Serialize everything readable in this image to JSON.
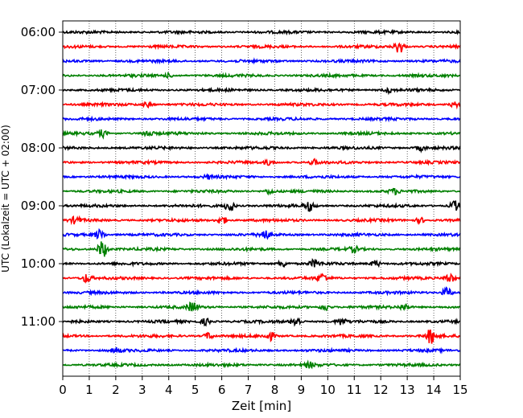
{
  "chart_data": {
    "type": "line",
    "xlabel": "Zeit  [min]",
    "ylabel": "UTC (Lokalzeit = UTC + 02:00)",
    "xlim": [
      0,
      15
    ],
    "x_ticks": [
      "0",
      "1",
      "2",
      "3",
      "4",
      "5",
      "6",
      "7",
      "8",
      "9",
      "10",
      "11",
      "12",
      "13",
      "14",
      "15"
    ],
    "y_ticks": [
      "06:00",
      "07:00",
      "08:00",
      "09:00",
      "10:00",
      "11:00"
    ],
    "grid": "vertical dotted",
    "trace_interval_minutes": 15,
    "first_trace": "06:00",
    "series_colors": [
      "#000000",
      "#ff0000",
      "#0000ff",
      "#008000"
    ],
    "traces": [
      {
        "start": "06:00",
        "color": "#000000",
        "events": []
      },
      {
        "start": "06:15",
        "color": "#ff0000",
        "events": [
          {
            "t": 12.7,
            "amp": 8
          }
        ]
      },
      {
        "start": "06:30",
        "color": "#0000ff",
        "events": []
      },
      {
        "start": "06:45",
        "color": "#008000",
        "events": [
          {
            "t": 4.0,
            "amp": 2
          }
        ]
      },
      {
        "start": "07:00",
        "color": "#000000",
        "events": [
          {
            "t": 12.3,
            "amp": 3
          }
        ]
      },
      {
        "start": "07:15",
        "color": "#ff0000",
        "events": [
          {
            "t": 3.2,
            "amp": 3
          },
          {
            "t": 14.8,
            "amp": 3
          }
        ]
      },
      {
        "start": "07:30",
        "color": "#0000ff",
        "events": []
      },
      {
        "start": "07:45",
        "color": "#008000",
        "events": [
          {
            "t": 1.5,
            "amp": 4
          },
          {
            "t": 3.2,
            "amp": 4
          }
        ]
      },
      {
        "start": "08:00",
        "color": "#000000",
        "events": [
          {
            "t": 13.5,
            "amp": 3
          }
        ]
      },
      {
        "start": "08:15",
        "color": "#ff0000",
        "events": [
          {
            "t": 7.8,
            "amp": 3
          },
          {
            "t": 9.5,
            "amp": 3
          }
        ]
      },
      {
        "start": "08:30",
        "color": "#0000ff",
        "events": [
          {
            "t": 5.5,
            "amp": 2
          }
        ]
      },
      {
        "start": "08:45",
        "color": "#008000",
        "events": [
          {
            "t": 7.8,
            "amp": 3
          },
          {
            "t": 12.5,
            "amp": 3
          }
        ]
      },
      {
        "start": "09:00",
        "color": "#000000",
        "events": [
          {
            "t": 6.3,
            "amp": 7
          },
          {
            "t": 9.3,
            "amp": 6
          },
          {
            "t": 14.8,
            "amp": 6
          }
        ]
      },
      {
        "start": "09:15",
        "color": "#ff0000",
        "events": [
          {
            "t": 0.5,
            "amp": 4
          },
          {
            "t": 6.0,
            "amp": 5
          },
          {
            "t": 13.5,
            "amp": 3
          }
        ]
      },
      {
        "start": "09:30",
        "color": "#0000ff",
        "events": [
          {
            "t": 1.4,
            "amp": 6
          },
          {
            "t": 7.6,
            "amp": 6
          }
        ]
      },
      {
        "start": "09:45",
        "color": "#008000",
        "events": [
          {
            "t": 1.5,
            "amp": 11
          },
          {
            "t": 11.0,
            "amp": 3
          }
        ]
      },
      {
        "start": "10:00",
        "color": "#000000",
        "events": [
          {
            "t": 8.3,
            "amp": 4
          },
          {
            "t": 9.5,
            "amp": 4
          },
          {
            "t": 11.8,
            "amp": 4
          }
        ]
      },
      {
        "start": "10:15",
        "color": "#ff0000",
        "events": [
          {
            "t": 0.9,
            "amp": 5
          },
          {
            "t": 9.8,
            "amp": 5
          },
          {
            "t": 14.6,
            "amp": 6
          }
        ]
      },
      {
        "start": "10:30",
        "color": "#0000ff",
        "events": [
          {
            "t": 14.5,
            "amp": 6
          }
        ]
      },
      {
        "start": "10:45",
        "color": "#008000",
        "events": [
          {
            "t": 4.9,
            "amp": 6
          },
          {
            "t": 9.9,
            "amp": 4
          },
          {
            "t": 12.9,
            "amp": 4
          }
        ]
      },
      {
        "start": "11:00",
        "color": "#000000",
        "events": [
          {
            "t": 5.4,
            "amp": 4
          },
          {
            "t": 8.8,
            "amp": 6
          },
          {
            "t": 10.5,
            "amp": 4
          }
        ]
      },
      {
        "start": "11:15",
        "color": "#ff0000",
        "events": [
          {
            "t": 5.5,
            "amp": 4
          },
          {
            "t": 7.8,
            "amp": 5
          },
          {
            "t": 13.9,
            "amp": 9
          }
        ]
      },
      {
        "start": "11:30",
        "color": "#0000ff",
        "events": [
          {
            "t": 2.0,
            "amp": 3
          }
        ]
      },
      {
        "start": "11:45",
        "color": "#008000",
        "events": [
          {
            "t": 9.3,
            "amp": 3
          }
        ]
      }
    ]
  }
}
